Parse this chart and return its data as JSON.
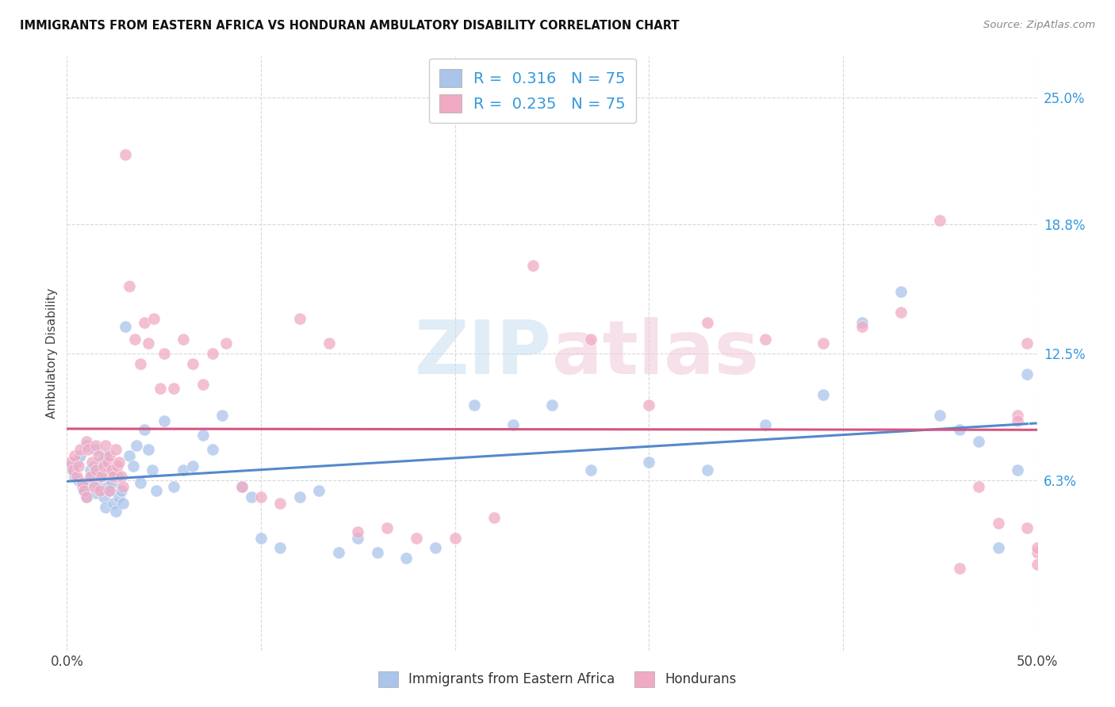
{
  "title": "IMMIGRANTS FROM EASTERN AFRICA VS HONDURAN AMBULATORY DISABILITY CORRELATION CHART",
  "source": "Source: ZipAtlas.com",
  "ylabel": "Ambulatory Disability",
  "xlim": [
    0.0,
    0.5
  ],
  "ylim": [
    -0.02,
    0.27
  ],
  "yticks": [
    0.063,
    0.125,
    0.188,
    0.25
  ],
  "ytick_labels": [
    "6.3%",
    "12.5%",
    "18.8%",
    "25.0%"
  ],
  "xticks": [
    0.0,
    0.1,
    0.2,
    0.3,
    0.4,
    0.5
  ],
  "xtick_labels": [
    "0.0%",
    "",
    "",
    "",
    "",
    "50.0%"
  ],
  "R_eastern": 0.316,
  "N_eastern": 75,
  "R_honduran": 0.235,
  "N_honduran": 75,
  "color_eastern": "#aac4ea",
  "color_honduran": "#f0aac4",
  "line_color_eastern": "#5588cc",
  "line_color_honduran": "#d45580",
  "background_color": "#ffffff",
  "grid_color": "#d8d8d8",
  "watermark": "ZIPatlas",
  "eastern_x": [
    0.002,
    0.003,
    0.004,
    0.005,
    0.006,
    0.007,
    0.008,
    0.009,
    0.01,
    0.01,
    0.011,
    0.012,
    0.013,
    0.014,
    0.015,
    0.015,
    0.016,
    0.017,
    0.018,
    0.019,
    0.02,
    0.02,
    0.021,
    0.022,
    0.022,
    0.023,
    0.024,
    0.025,
    0.026,
    0.027,
    0.028,
    0.029,
    0.03,
    0.032,
    0.034,
    0.036,
    0.038,
    0.04,
    0.042,
    0.044,
    0.046,
    0.05,
    0.055,
    0.06,
    0.065,
    0.07,
    0.075,
    0.08,
    0.09,
    0.095,
    0.1,
    0.11,
    0.12,
    0.13,
    0.14,
    0.15,
    0.16,
    0.175,
    0.19,
    0.21,
    0.23,
    0.25,
    0.27,
    0.3,
    0.33,
    0.36,
    0.39,
    0.41,
    0.43,
    0.45,
    0.46,
    0.47,
    0.48,
    0.49,
    0.495
  ],
  "eastern_y": [
    0.07,
    0.068,
    0.065,
    0.072,
    0.063,
    0.075,
    0.06,
    0.058,
    0.055,
    0.08,
    0.062,
    0.068,
    0.065,
    0.07,
    0.057,
    0.078,
    0.06,
    0.065,
    0.072,
    0.055,
    0.05,
    0.075,
    0.06,
    0.058,
    0.068,
    0.062,
    0.052,
    0.048,
    0.065,
    0.055,
    0.058,
    0.052,
    0.138,
    0.075,
    0.07,
    0.08,
    0.062,
    0.088,
    0.078,
    0.068,
    0.058,
    0.092,
    0.06,
    0.068,
    0.07,
    0.085,
    0.078,
    0.095,
    0.06,
    0.055,
    0.035,
    0.03,
    0.055,
    0.058,
    0.028,
    0.035,
    0.028,
    0.025,
    0.03,
    0.1,
    0.09,
    0.1,
    0.068,
    0.072,
    0.068,
    0.09,
    0.105,
    0.14,
    0.155,
    0.095,
    0.088,
    0.082,
    0.03,
    0.068,
    0.115
  ],
  "honduran_x": [
    0.002,
    0.003,
    0.004,
    0.005,
    0.006,
    0.007,
    0.008,
    0.009,
    0.01,
    0.01,
    0.011,
    0.012,
    0.013,
    0.014,
    0.015,
    0.015,
    0.016,
    0.017,
    0.018,
    0.019,
    0.02,
    0.021,
    0.022,
    0.022,
    0.023,
    0.024,
    0.025,
    0.026,
    0.027,
    0.028,
    0.029,
    0.03,
    0.032,
    0.035,
    0.038,
    0.04,
    0.042,
    0.045,
    0.048,
    0.05,
    0.055,
    0.06,
    0.065,
    0.07,
    0.075,
    0.082,
    0.09,
    0.1,
    0.11,
    0.12,
    0.135,
    0.15,
    0.165,
    0.18,
    0.2,
    0.22,
    0.24,
    0.27,
    0.3,
    0.33,
    0.36,
    0.39,
    0.41,
    0.43,
    0.45,
    0.46,
    0.47,
    0.48,
    0.49,
    0.49,
    0.495,
    0.495,
    0.5,
    0.5,
    0.5
  ],
  "honduran_y": [
    0.072,
    0.068,
    0.075,
    0.065,
    0.07,
    0.078,
    0.062,
    0.058,
    0.082,
    0.055,
    0.078,
    0.065,
    0.072,
    0.06,
    0.068,
    0.08,
    0.075,
    0.058,
    0.065,
    0.07,
    0.08,
    0.072,
    0.058,
    0.075,
    0.068,
    0.065,
    0.078,
    0.07,
    0.072,
    0.065,
    0.06,
    0.222,
    0.158,
    0.132,
    0.12,
    0.14,
    0.13,
    0.142,
    0.108,
    0.125,
    0.108,
    0.132,
    0.12,
    0.11,
    0.125,
    0.13,
    0.06,
    0.055,
    0.052,
    0.142,
    0.13,
    0.038,
    0.04,
    0.035,
    0.035,
    0.045,
    0.168,
    0.132,
    0.1,
    0.14,
    0.132,
    0.13,
    0.138,
    0.145,
    0.19,
    0.02,
    0.06,
    0.042,
    0.095,
    0.092,
    0.13,
    0.04,
    0.028,
    0.03,
    0.022
  ]
}
